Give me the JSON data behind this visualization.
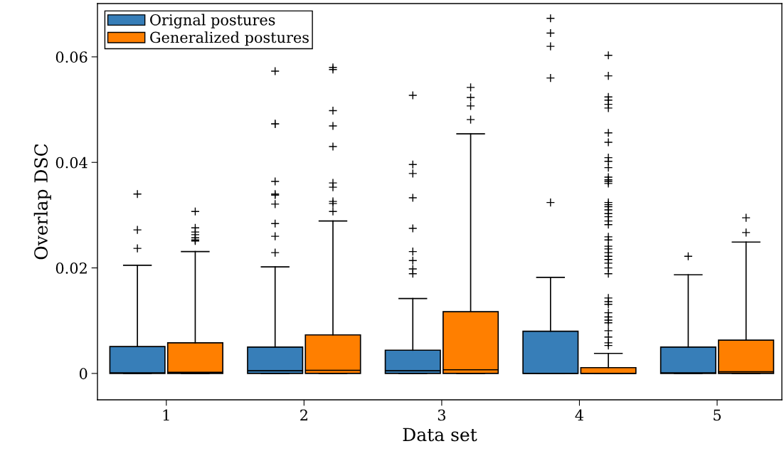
{
  "chart_data": {
    "type": "box",
    "xlabel": "Data set",
    "ylabel": "Overlap DSC",
    "categories": [
      "1",
      "2",
      "3",
      "4",
      "5"
    ],
    "ylim": [
      -0.005,
      0.0701
    ],
    "yticks": [
      0,
      0.02,
      0.04,
      0.06
    ],
    "grid": false,
    "legend": "top left",
    "marker": "cross",
    "series": [
      {
        "name": "Orignal postures",
        "color": "#377eb8",
        "boxes": [
          {
            "low": 0,
            "q1": 0,
            "median": 0.0001,
            "q3": 0.0051,
            "high": 0.0205,
            "outliers": [
              0.034,
              0.0272,
              0.0237
            ]
          },
          {
            "low": 0,
            "q1": 0,
            "median": 0.0005,
            "q3": 0.005,
            "high": 0.0202,
            "outliers": [
              0.0573,
              0.0473,
              0.0473,
              0.0364,
              0.034,
              0.0338,
              0.0321,
              0.0284,
              0.026,
              0.0229
            ]
          },
          {
            "low": 0,
            "q1": 0,
            "median": 0.0005,
            "q3": 0.0044,
            "high": 0.0142,
            "outliers": [
              0.0527,
              0.0396,
              0.0379,
              0.0333,
              0.0275,
              0.0231,
              0.0214,
              0.0198,
              0.0189
            ]
          },
          {
            "low": 0,
            "q1": 0,
            "median": 0,
            "q3": 0.008,
            "high": 0.0182,
            "outliers": [
              0.0673,
              0.0645,
              0.062,
              0.056,
              0.0324
            ]
          },
          {
            "low": 0,
            "q1": 0,
            "median": 0.0001,
            "q3": 0.005,
            "high": 0.0187,
            "outliers": [
              0.0222
            ]
          }
        ]
      },
      {
        "name": "Generalized postures",
        "color": "#ff7f00",
        "boxes": [
          {
            "low": 0,
            "q1": 0,
            "median": 0.0002,
            "q3": 0.0058,
            "high": 0.0231,
            "outliers": [
              0.0307,
              0.0276,
              0.0268,
              0.0263,
              0.0257,
              0.0253,
              0.0251
            ]
          },
          {
            "low": 0,
            "q1": 0,
            "median": 0.0006,
            "q3": 0.0073,
            "high": 0.0289,
            "outliers": [
              0.058,
              0.0576,
              0.0498,
              0.0469,
              0.043,
              0.0361,
              0.0353,
              0.0326,
              0.0322,
              0.0307
            ]
          },
          {
            "low": 0,
            "q1": 0,
            "median": 0.0007,
            "q3": 0.0117,
            "high": 0.0454,
            "outliers": [
              0.0542,
              0.0523,
              0.0507,
              0.0481
            ]
          },
          {
            "low": 0,
            "q1": 0,
            "median": 0,
            "q3": 0.0011,
            "high": 0.0038,
            "outliers": [
              0.0603,
              0.0564,
              0.0524,
              0.0518,
              0.051,
              0.0503,
              0.0456,
              0.0438,
              0.0409,
              0.0402,
              0.039,
              0.0372,
              0.0367,
              0.0364,
              0.036,
              0.0324,
              0.032,
              0.0316,
              0.031,
              0.0303,
              0.0297,
              0.0289,
              0.0282,
              0.0259,
              0.0253,
              0.0241,
              0.0236,
              0.0229,
              0.0222,
              0.0216,
              0.0209,
              0.02,
              0.0189,
              0.0143,
              0.0136,
              0.0131,
              0.0115,
              0.0107,
              0.0101,
              0.0096,
              0.0081,
              0.0069,
              0.0058,
              0.0053
            ]
          },
          {
            "low": 0,
            "q1": 0,
            "median": 0.0003,
            "q3": 0.0063,
            "high": 0.0249,
            "outliers": [
              0.0295,
              0.0267
            ]
          }
        ]
      }
    ]
  }
}
